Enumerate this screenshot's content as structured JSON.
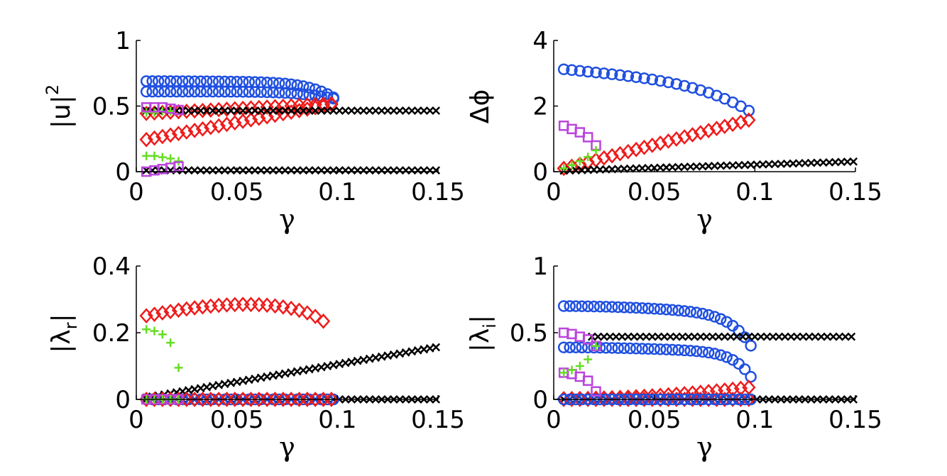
{
  "figure": {
    "panels": [
      {
        "id": "tl",
        "ylabel": "|u|",
        "ylabel_sup": "2",
        "ylabel_sub": "",
        "xlabel": "γ",
        "xticks": [
          "0",
          "0.05",
          "0.1",
          "0.15"
        ],
        "yticks": [
          "0",
          "0.5",
          "1"
        ]
      },
      {
        "id": "tr",
        "ylabel": "Δϕ",
        "ylabel_sup": "",
        "ylabel_sub": "",
        "xlabel": "γ",
        "xticks": [
          "0",
          "0.05",
          "0.1",
          "0.15"
        ],
        "yticks": [
          "0",
          "2",
          "4"
        ]
      },
      {
        "id": "bl",
        "ylabel": "|λ",
        "ylabel_sup": "",
        "ylabel_sub": "r",
        "ylabel_tail": "|",
        "xlabel": "γ",
        "xticks": [
          "0",
          "0.05",
          "0.1",
          "0.15"
        ],
        "yticks": [
          "0",
          "0.2",
          "0.4"
        ]
      },
      {
        "id": "br",
        "ylabel": "|λ",
        "ylabel_sup": "",
        "ylabel_sub": "i",
        "ylabel_tail": "|",
        "xlabel": "γ",
        "xticks": [
          "0",
          "0.05",
          "0.1",
          "0.15"
        ],
        "yticks": [
          "0",
          "0.5",
          "1"
        ]
      }
    ]
  },
  "colors": {
    "blue": "#1f4fe0",
    "red": "#ee1c1c",
    "green": "#66dd22",
    "purple": "#bb44dd",
    "black": "#000000"
  },
  "chart_data": [
    {
      "type": "scatter",
      "panel": "tl",
      "xlim": [
        0,
        0.15
      ],
      "ylim": [
        0,
        1
      ],
      "xlabel": "γ",
      "ylabel": "|u|^2",
      "series": [
        {
          "name": "blue-upper",
          "marker": "circle",
          "color": "blue",
          "x_range": [
            0.005,
            0.1,
            0.003
          ],
          "y_fn": "blue_up"
        },
        {
          "name": "blue-lower",
          "marker": "circle",
          "color": "blue",
          "x_range": [
            0.005,
            0.1,
            0.003
          ],
          "y_fn": "blue_lo"
        },
        {
          "name": "red-upper",
          "marker": "diamond",
          "color": "red",
          "x_range": [
            0.005,
            0.1,
            0.004
          ],
          "y_fn": "red_up"
        },
        {
          "name": "red-lower",
          "marker": "diamond",
          "color": "red",
          "x_range": [
            0.005,
            0.1,
            0.004
          ],
          "y_fn": "red_lo"
        },
        {
          "name": "black-upper",
          "marker": "cross",
          "color": "black",
          "x_range": [
            0.005,
            0.15,
            0.003
          ],
          "y_const": 0.465
        },
        {
          "name": "black-lower",
          "marker": "cross",
          "color": "black",
          "x_range": [
            0.005,
            0.15,
            0.003
          ],
          "y_const": 0.01
        },
        {
          "name": "green",
          "marker": "plus",
          "color": "green",
          "x": [
            0.005,
            0.009,
            0.013,
            0.017,
            0.021,
            0.005,
            0.009,
            0.013,
            0.017
          ],
          "y": [
            0.12,
            0.12,
            0.11,
            0.1,
            0.08,
            0.45,
            0.45,
            0.46,
            0.46
          ]
        },
        {
          "name": "purple",
          "marker": "square",
          "color": "purple",
          "x": [
            0.005,
            0.009,
            0.013,
            0.017,
            0.021,
            0.005,
            0.009,
            0.013,
            0.017,
            0.021
          ],
          "y": [
            0.49,
            0.49,
            0.49,
            0.48,
            0.47,
            0.0,
            0.01,
            0.02,
            0.03,
            0.04
          ]
        }
      ]
    },
    {
      "type": "scatter",
      "panel": "tr",
      "xlim": [
        0,
        0.15
      ],
      "ylim": [
        0,
        4
      ],
      "xlabel": "γ",
      "ylabel": "Δϕ",
      "series": [
        {
          "name": "blue",
          "marker": "circle",
          "color": "blue",
          "x_range": [
            0.005,
            0.1,
            0.004
          ],
          "y_fn": "phi_blue"
        },
        {
          "name": "red",
          "marker": "diamond",
          "color": "red",
          "x_range": [
            0.005,
            0.1,
            0.004
          ],
          "y_fn": "phi_red"
        },
        {
          "name": "black",
          "marker": "cross",
          "color": "black",
          "x_range": [
            0.005,
            0.15,
            0.003
          ],
          "y_fn": "phi_black"
        },
        {
          "name": "purple",
          "marker": "square",
          "color": "purple",
          "x": [
            0.005,
            0.009,
            0.013,
            0.017,
            0.021
          ],
          "y": [
            1.4,
            1.3,
            1.2,
            1.05,
            0.8
          ]
        },
        {
          "name": "green",
          "marker": "plus",
          "color": "green",
          "x": [
            0.005,
            0.009,
            0.013,
            0.017,
            0.021
          ],
          "y": [
            0.1,
            0.2,
            0.32,
            0.45,
            0.65
          ]
        }
      ]
    },
    {
      "type": "scatter",
      "panel": "bl",
      "xlim": [
        0,
        0.15
      ],
      "ylim": [
        0,
        0.4
      ],
      "xlabel": "γ",
      "ylabel": "|λr|",
      "series": [
        {
          "name": "red",
          "marker": "diamond",
          "color": "red",
          "x_range": [
            0.005,
            0.096,
            0.004
          ],
          "y_fn": "lr_red"
        },
        {
          "name": "green",
          "marker": "plus",
          "color": "green",
          "x": [
            0.005,
            0.009,
            0.013,
            0.017,
            0.021
          ],
          "y": [
            0.21,
            0.205,
            0.195,
            0.17,
            0.095
          ]
        },
        {
          "name": "black-rising",
          "marker": "cross",
          "color": "black",
          "x_range": [
            0.005,
            0.15,
            0.003
          ],
          "y_fn": "lr_black"
        },
        {
          "name": "black-zero",
          "marker": "cross",
          "color": "black",
          "x_range": [
            0.005,
            0.15,
            0.003
          ],
          "y_const": 0.0
        },
        {
          "name": "blue-zero",
          "marker": "circle",
          "color": "blue",
          "x_range": [
            0.005,
            0.1,
            0.003
          ],
          "y_const": 0.0
        },
        {
          "name": "red-zero",
          "marker": "diamond",
          "color": "red",
          "x_range": [
            0.005,
            0.1,
            0.004
          ],
          "y_const": 0.0
        },
        {
          "name": "purple-zero",
          "marker": "square",
          "color": "purple",
          "x": [
            0.005,
            0.009,
            0.013,
            0.017,
            0.021
          ],
          "y": [
            0,
            0,
            0,
            0,
            0
          ]
        },
        {
          "name": "green-zero",
          "marker": "plus",
          "color": "green",
          "x": [
            0.005,
            0.009,
            0.013,
            0.017,
            0.021
          ],
          "y": [
            0,
            0,
            0,
            0,
            0
          ]
        }
      ]
    },
    {
      "type": "scatter",
      "panel": "br",
      "xlim": [
        0,
        0.15
      ],
      "ylim": [
        0,
        1
      ],
      "xlabel": "γ",
      "ylabel": "|λi|",
      "series": [
        {
          "name": "blue-upper",
          "marker": "circle",
          "color": "blue",
          "x_range": [
            0.005,
            0.1,
            0.003
          ],
          "y_fn": "li_blue_up"
        },
        {
          "name": "blue-lower",
          "marker": "circle",
          "color": "blue",
          "x_range": [
            0.005,
            0.1,
            0.003
          ],
          "y_fn": "li_blue_lo"
        },
        {
          "name": "black",
          "marker": "cross",
          "color": "black",
          "x_range": [
            0.019,
            0.15,
            0.003
          ],
          "y_const": 0.47
        },
        {
          "name": "black-zero",
          "marker": "cross",
          "color": "black",
          "x_range": [
            0.005,
            0.15,
            0.003
          ],
          "y_const": 0.0
        },
        {
          "name": "red",
          "marker": "diamond",
          "color": "red",
          "x_range": [
            0.005,
            0.1,
            0.004
          ],
          "y_fn": "li_red"
        },
        {
          "name": "red-zero",
          "marker": "diamond",
          "color": "red",
          "x_range": [
            0.005,
            0.1,
            0.004
          ],
          "y_const": 0.0
        },
        {
          "name": "blue-zero",
          "marker": "circle",
          "color": "blue",
          "x_range": [
            0.005,
            0.1,
            0.003
          ],
          "y_const": 0.0
        },
        {
          "name": "purple",
          "marker": "square",
          "color": "purple",
          "x": [
            0.005,
            0.009,
            0.013,
            0.017,
            0.021,
            0.005,
            0.009,
            0.013,
            0.017,
            0.021
          ],
          "y": [
            0.5,
            0.49,
            0.47,
            0.45,
            0.4,
            0.2,
            0.19,
            0.17,
            0.14,
            0.06
          ]
        },
        {
          "name": "green",
          "marker": "plus",
          "color": "green",
          "x": [
            0.005,
            0.009,
            0.013,
            0.017,
            0.021
          ],
          "y": [
            0.2,
            0.22,
            0.25,
            0.3,
            0.4
          ]
        }
      ]
    }
  ]
}
